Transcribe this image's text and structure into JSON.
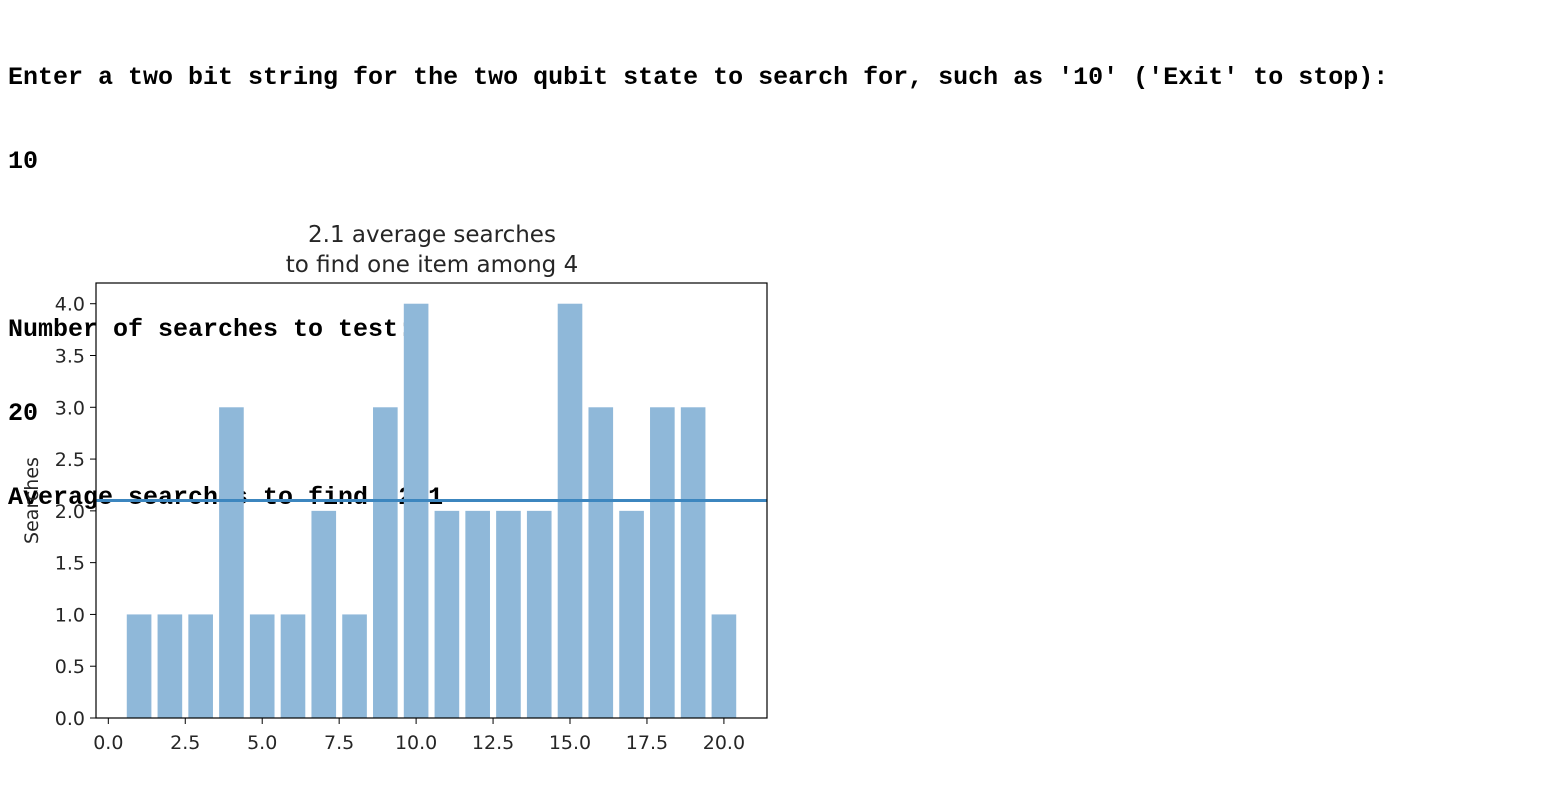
{
  "console": {
    "prompt_line": "Enter a two bit string for the two qubit state to search for, such as '10' ('Exit' to stop):",
    "input_bits": "10",
    "searches_prompt": "Number of searches to test:",
    "searches_input": "20",
    "average_line": "Average searches to find: 2.1"
  },
  "chart_data": {
    "type": "bar",
    "title": "2.1 average searches\nto find one item among 4",
    "title_lines": [
      "2.1 average searches",
      "to find one item among 4"
    ],
    "xlabel": "",
    "ylabel": "Searches",
    "x": [
      1,
      2,
      3,
      4,
      5,
      6,
      7,
      8,
      9,
      10,
      11,
      12,
      13,
      14,
      15,
      16,
      17,
      18,
      19,
      20
    ],
    "values": [
      1,
      1,
      1,
      3,
      1,
      1,
      2,
      1,
      3,
      4,
      2,
      2,
      2,
      2,
      4,
      3,
      2,
      3,
      3,
      1
    ],
    "average_line": 2.1,
    "xlim": [
      -0.4,
      21.4
    ],
    "ylim": [
      0,
      4.2
    ],
    "xticks": [
      "0.0",
      "2.5",
      "5.0",
      "7.5",
      "10.0",
      "12.5",
      "15.0",
      "17.5",
      "20.0"
    ],
    "xtick_values": [
      0,
      2.5,
      5,
      7.5,
      10,
      12.5,
      15,
      17.5,
      20
    ],
    "yticks": [
      "0.0",
      "0.5",
      "1.0",
      "1.5",
      "2.0",
      "2.5",
      "3.0",
      "3.5",
      "4.0"
    ],
    "ytick_values": [
      0,
      0.5,
      1,
      1.5,
      2,
      2.5,
      3,
      3.5,
      4
    ],
    "grid": false,
    "bar_color": "#8fb8d9",
    "line_color": "#3c86bf"
  }
}
